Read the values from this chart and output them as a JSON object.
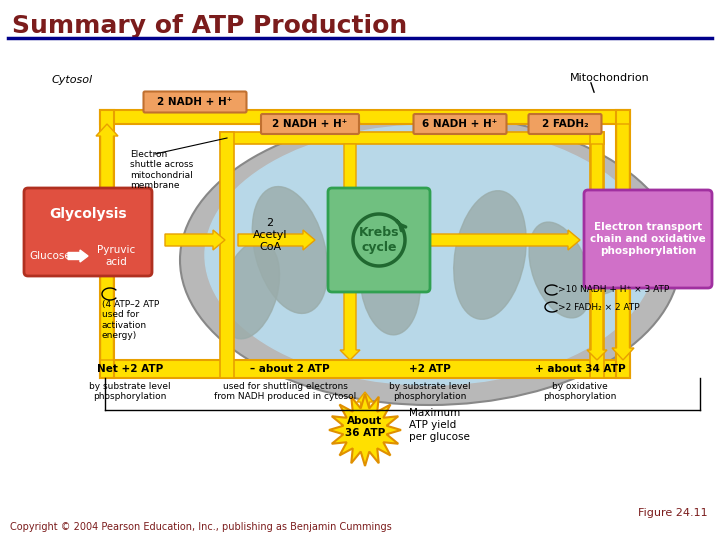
{
  "title": "Summary of ATP Production",
  "title_color": "#7B1C1C",
  "title_fontsize": 18,
  "divider_color": "#00008B",
  "figure_label": "Figure 24.11",
  "copyright": "Copyright © 2004 Pearson Education, Inc., publishing as Benjamin Cummings",
  "bg_color": "#FFFFFF",
  "yellow": "#FFE000",
  "yellow_edge": "#E8A000",
  "nadh_fill": "#F0A060",
  "nadh_edge": "#C07030",
  "glyc_fill": "#E05040",
  "glyc_edge": "#B03020",
  "krebs_fill": "#70C080",
  "krebs_edge": "#30A050",
  "etc_fill": "#D070C8",
  "etc_edge": "#A030A0",
  "mito_outer": "#B8B8B8",
  "mito_inner": "#B8D8E8",
  "cristae": "#9AACAA",
  "sun_fill": "#FFE000",
  "sun_edge": "#E09000"
}
